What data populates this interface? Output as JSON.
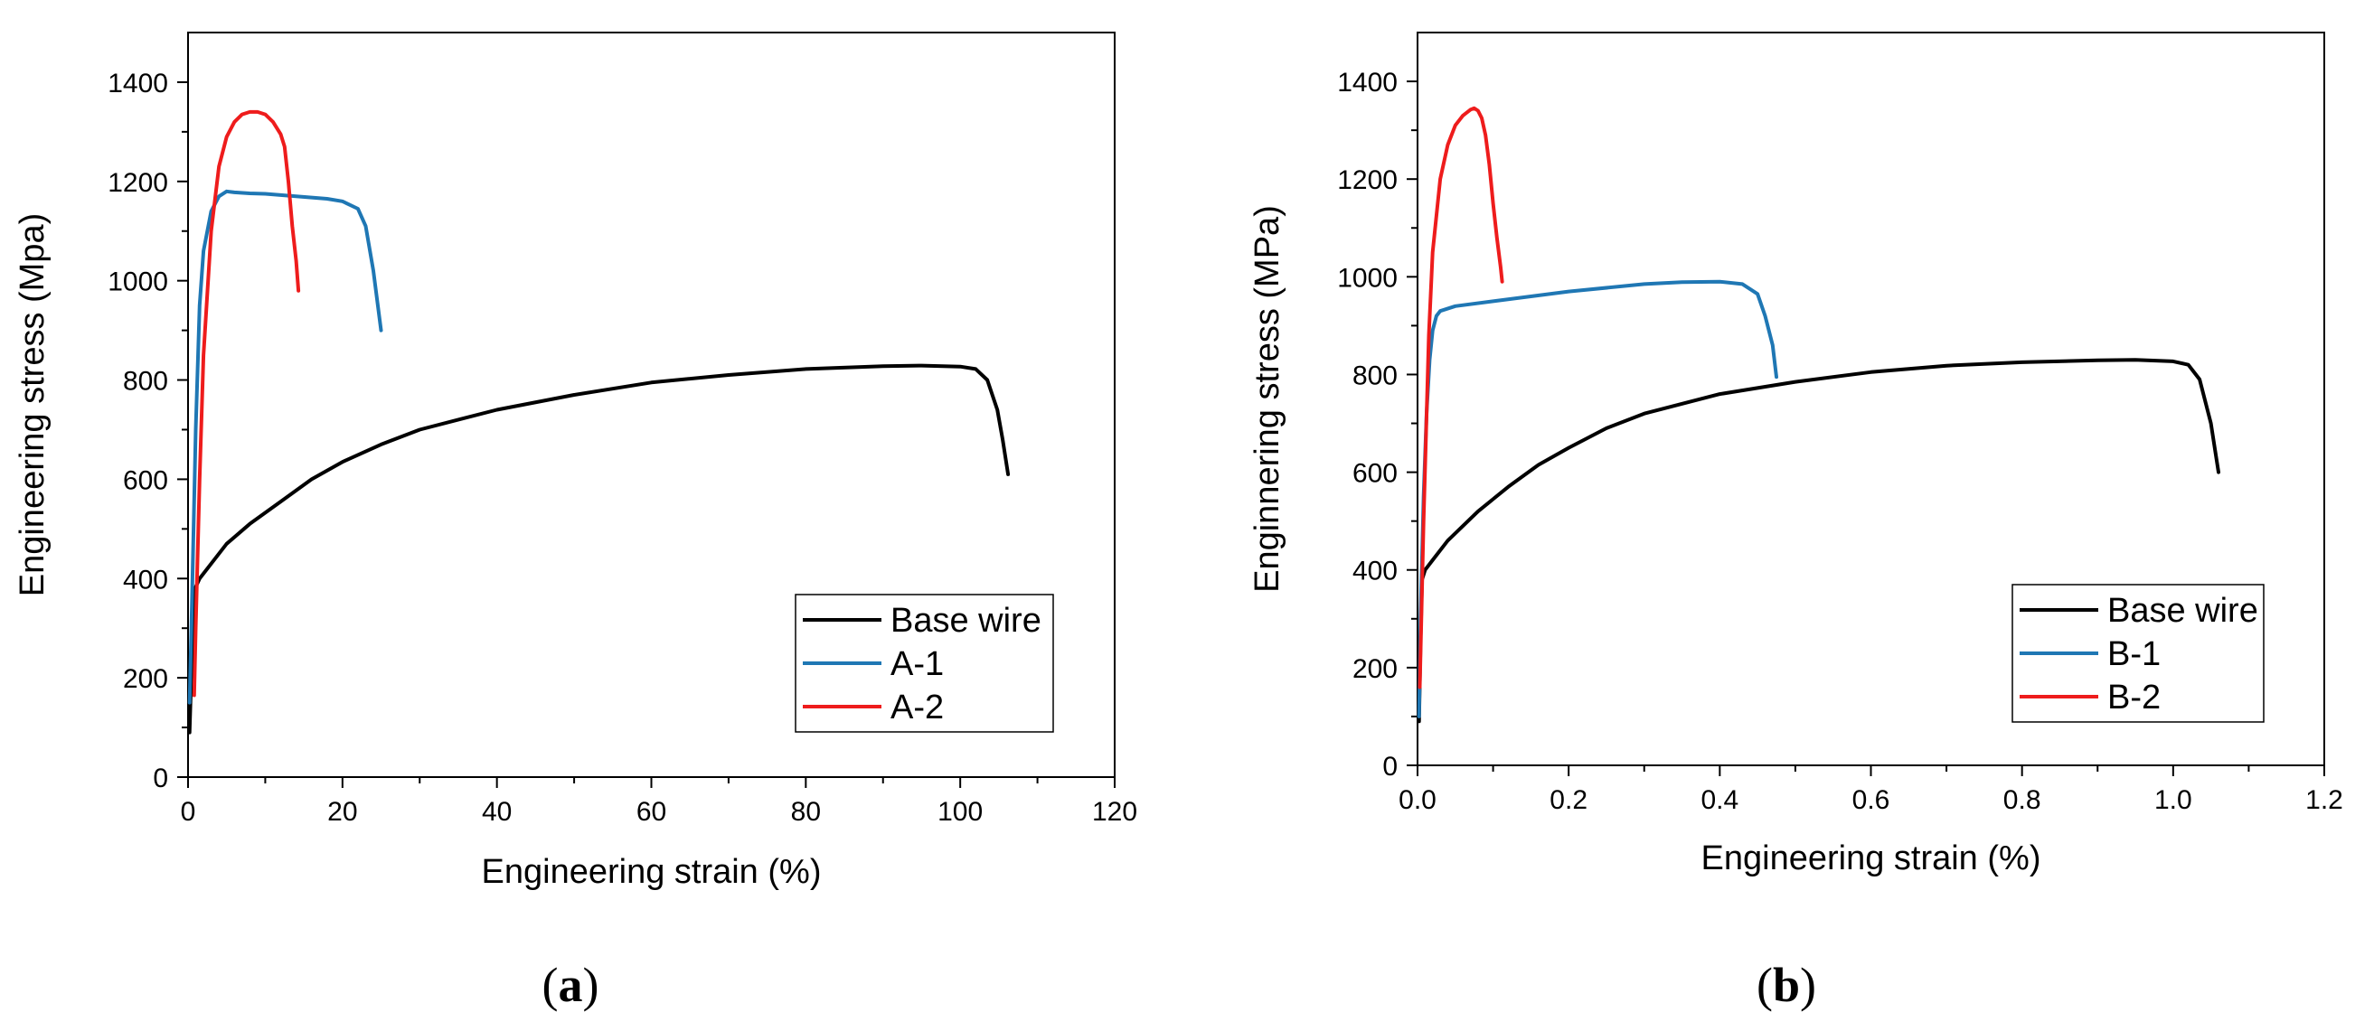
{
  "chart_data": [
    {
      "type": "line",
      "panel_label": "a",
      "xlabel": "Engineering strain (%)",
      "ylabel": "Engineering stress (Mpa)",
      "xlim": [
        0,
        120
      ],
      "ylim": [
        0,
        1500
      ],
      "x_ticks": [
        0,
        20,
        40,
        60,
        80,
        100,
        120
      ],
      "x_tick_labels": [
        "0",
        "20",
        "40",
        "60",
        "80",
        "100",
        "120"
      ],
      "y_ticks": [
        0,
        200,
        400,
        600,
        800,
        1000,
        1200,
        1400
      ],
      "y_tick_labels": [
        "0",
        "200",
        "400",
        "600",
        "800",
        "1000",
        "1200",
        "1400"
      ],
      "legend_position": "bottom-right",
      "grid": false,
      "series": [
        {
          "name": "Base wire",
          "color": "#000000",
          "x": [
            0.2,
            0.5,
            0.9,
            1.5,
            3,
            5,
            8,
            12,
            16,
            20,
            25,
            30,
            40,
            50,
            60,
            70,
            80,
            90,
            95,
            100,
            102,
            103.5,
            104.8,
            105.5,
            106.2
          ],
          "y": [
            90,
            250,
            380,
            400,
            430,
            470,
            510,
            555,
            600,
            635,
            670,
            700,
            740,
            770,
            795,
            810,
            822,
            828,
            829,
            827,
            822,
            800,
            740,
            680,
            610
          ]
        },
        {
          "name": "A-1",
          "color": "#1f77b4",
          "x": [
            0.2,
            0.5,
            1,
            1.5,
            2,
            3,
            4,
            5,
            6,
            8,
            10,
            14,
            18,
            20,
            22,
            23,
            24,
            25
          ],
          "y": [
            150,
            350,
            700,
            950,
            1060,
            1140,
            1170,
            1180,
            1178,
            1176,
            1175,
            1170,
            1165,
            1160,
            1145,
            1110,
            1020,
            900
          ]
        },
        {
          "name": "A-2",
          "color": "#ee1c1c",
          "x": [
            0.8,
            1,
            1.5,
            2,
            3,
            4,
            5,
            6,
            7,
            8,
            9,
            10,
            11,
            12,
            12.5,
            13,
            13.5,
            14,
            14.3
          ],
          "y": [
            165,
            300,
            600,
            850,
            1100,
            1230,
            1290,
            1320,
            1335,
            1340,
            1340,
            1335,
            1320,
            1295,
            1270,
            1200,
            1110,
            1040,
            980
          ]
        }
      ],
      "legend": [
        "Base wire",
        "A-1",
        "A-2"
      ]
    },
    {
      "type": "line",
      "panel_label": "b",
      "xlabel": "Engineering strain (%)",
      "ylabel": "Enginnering stress (MPa)",
      "xlim": [
        0,
        1.2
      ],
      "ylim": [
        0,
        1500
      ],
      "x_ticks": [
        0,
        0.2,
        0.4,
        0.6,
        0.8,
        1.0,
        1.2
      ],
      "x_tick_labels": [
        "0.0",
        "0.2",
        "0.4",
        "0.6",
        "0.8",
        "1.0",
        "1.2"
      ],
      "y_ticks": [
        0,
        200,
        400,
        600,
        800,
        1000,
        1200,
        1400
      ],
      "y_tick_labels": [
        "0",
        "200",
        "400",
        "600",
        "800",
        "1000",
        "1200",
        "1400"
      ],
      "legend_position": "bottom-right",
      "grid": false,
      "series": [
        {
          "name": "Base wire",
          "color": "#000000",
          "x": [
            0.002,
            0.004,
            0.006,
            0.01,
            0.02,
            0.04,
            0.08,
            0.12,
            0.16,
            0.2,
            0.25,
            0.3,
            0.4,
            0.5,
            0.6,
            0.7,
            0.8,
            0.9,
            0.95,
            1.0,
            1.02,
            1.035,
            1.05,
            1.06
          ],
          "y": [
            90,
            250,
            380,
            400,
            420,
            460,
            520,
            570,
            615,
            650,
            690,
            720,
            760,
            785,
            805,
            818,
            825,
            829,
            830,
            827,
            820,
            790,
            700,
            600
          ]
        },
        {
          "name": "B-1",
          "color": "#1f77b4",
          "x": [
            0.002,
            0.004,
            0.008,
            0.012,
            0.016,
            0.02,
            0.025,
            0.03,
            0.05,
            0.1,
            0.2,
            0.3,
            0.35,
            0.4,
            0.43,
            0.45,
            0.46,
            0.47,
            0.475
          ],
          "y": [
            100,
            300,
            550,
            720,
            830,
            890,
            920,
            930,
            940,
            950,
            970,
            985,
            989,
            990,
            985,
            965,
            920,
            860,
            795
          ]
        },
        {
          "name": "B-2",
          "color": "#ee1c1c",
          "x": [
            0.003,
            0.008,
            0.015,
            0.02,
            0.03,
            0.04,
            0.05,
            0.06,
            0.07,
            0.075,
            0.08,
            0.085,
            0.09,
            0.095,
            0.1,
            0.105,
            0.11,
            0.112
          ],
          "y": [
            160,
            500,
            880,
            1050,
            1200,
            1270,
            1310,
            1330,
            1342,
            1345,
            1340,
            1325,
            1290,
            1230,
            1150,
            1080,
            1020,
            990
          ]
        }
      ],
      "legend": [
        "Base wire",
        "B-1",
        "B-2"
      ]
    }
  ]
}
